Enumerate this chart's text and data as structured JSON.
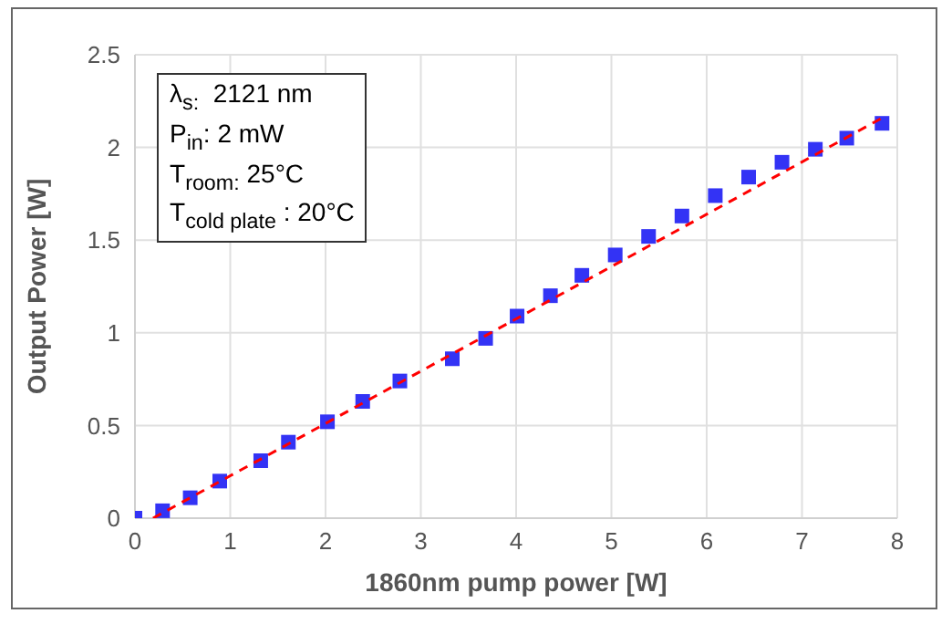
{
  "chart_data": {
    "type": "scatter",
    "xlabel": "1860nm pump power [W]",
    "ylabel": "Output Power [W]",
    "xlim": [
      0,
      8
    ],
    "xticks": [
      0,
      1,
      2,
      3,
      4,
      5,
      6,
      7,
      8
    ],
    "ylim": [
      0,
      2.5
    ],
    "yticks": [
      0,
      0.5,
      1,
      1.5,
      2,
      2.5
    ],
    "grid": true,
    "annotations": [
      "λ$_{s:}$  2121 nm",
      "P$_{in}$: 2 mW",
      "T$_{room:}$ 25°C",
      "T$_{cold plate}$ : 20°C"
    ],
    "series": [
      {
        "color": "#3333f5",
        "marker": "square",
        "x": [
          0,
          0.29,
          0.58,
          0.89,
          1.32,
          1.61,
          2.02,
          2.39,
          2.78,
          3.33,
          3.68,
          4.01,
          4.36,
          4.69,
          5.04,
          5.39,
          5.74,
          6.09,
          6.44,
          6.79,
          7.14,
          7.47,
          7.84
        ],
        "values": [
          0,
          0.04,
          0.11,
          0.2,
          0.31,
          0.41,
          0.52,
          0.63,
          0.74,
          0.86,
          0.97,
          1.09,
          1.2,
          1.31,
          1.42,
          1.52,
          1.63,
          1.74,
          1.84,
          1.92,
          1.99,
          2.05,
          2.13
        ]
      },
      {
        "type": "line",
        "color": "#ff0000",
        "line_style": "dashed",
        "marker": "none",
        "x": [
          0.19,
          7.88
        ],
        "values": [
          0,
          2.17
        ]
      }
    ]
  }
}
